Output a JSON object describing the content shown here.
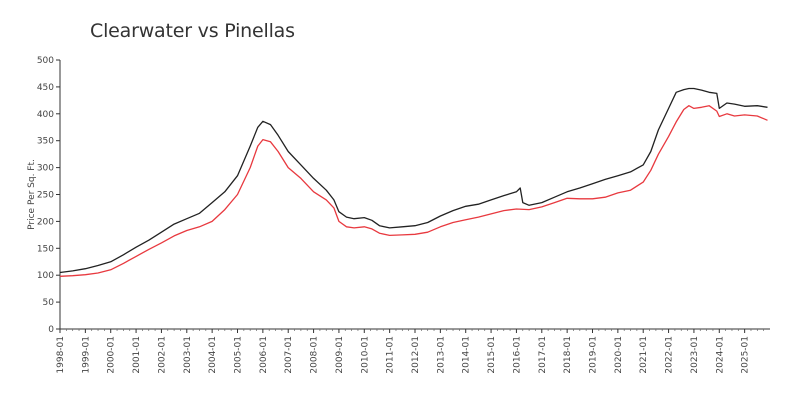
{
  "chart_data": {
    "type": "line",
    "title": "Clearwater vs Pinellas",
    "xlabel": "",
    "ylabel": "Price Per Sq. Ft.",
    "ylim": [
      0,
      500
    ],
    "yticks": [
      0,
      50,
      100,
      150,
      200,
      250,
      300,
      350,
      400,
      450,
      500
    ],
    "xlim": [
      1998.0,
      2026.0
    ],
    "xtick_labels": [
      "1998-01",
      "1999-01",
      "2000-01",
      "2001-01",
      "2002-01",
      "2003-01",
      "2004-01",
      "2005-01",
      "2006-01",
      "2007-01",
      "2008-01",
      "2009-01",
      "2010-01",
      "2011-01",
      "2012-01",
      "2013-01",
      "2014-01",
      "2015-01",
      "2016-01",
      "2017-01",
      "2018-01",
      "2019-01",
      "2020-01",
      "2021-01",
      "2022-01",
      "2023-01",
      "2024-01",
      "2025-01"
    ],
    "grid": false,
    "series": [
      {
        "name": "Clearwater",
        "color": "#222222",
        "x": [
          1998.0,
          1998.5,
          1999.0,
          1999.5,
          2000.0,
          2000.5,
          2001.0,
          2001.5,
          2002.0,
          2002.5,
          2003.0,
          2003.5,
          2004.0,
          2004.5,
          2005.0,
          2005.5,
          2005.8,
          2006.0,
          2006.3,
          2006.6,
          2007.0,
          2007.5,
          2008.0,
          2008.5,
          2008.8,
          2009.0,
          2009.3,
          2009.6,
          2010.0,
          2010.3,
          2010.6,
          2011.0,
          2011.5,
          2012.0,
          2012.5,
          2013.0,
          2013.5,
          2014.0,
          2014.5,
          2015.0,
          2015.5,
          2016.0,
          2016.15,
          2016.25,
          2016.5,
          2017.0,
          2017.5,
          2018.0,
          2018.5,
          2019.0,
          2019.5,
          2020.0,
          2020.5,
          2021.0,
          2021.3,
          2021.6,
          2022.0,
          2022.3,
          2022.6,
          2022.8,
          2023.0,
          2023.3,
          2023.6,
          2023.9,
          2024.0,
          2024.3,
          2024.6,
          2025.0,
          2025.5,
          2025.9
        ],
        "values": [
          105,
          108,
          112,
          118,
          125,
          138,
          152,
          165,
          180,
          195,
          205,
          215,
          235,
          255,
          285,
          340,
          375,
          386,
          380,
          360,
          330,
          305,
          280,
          258,
          240,
          218,
          208,
          205,
          207,
          202,
          192,
          188,
          190,
          192,
          198,
          210,
          220,
          228,
          232,
          240,
          248,
          255,
          262,
          235,
          230,
          235,
          245,
          255,
          262,
          270,
          278,
          285,
          292,
          305,
          330,
          370,
          410,
          440,
          445,
          447,
          447,
          444,
          440,
          438,
          410,
          420,
          418,
          414,
          415,
          412
        ]
      },
      {
        "name": "Pinellas",
        "color": "#e8393f",
        "x": [
          1998.0,
          1998.5,
          1999.0,
          1999.5,
          2000.0,
          2000.5,
          2001.0,
          2001.5,
          2002.0,
          2002.5,
          2003.0,
          2003.5,
          2004.0,
          2004.5,
          2005.0,
          2005.5,
          2005.8,
          2006.0,
          2006.3,
          2006.6,
          2007.0,
          2007.5,
          2008.0,
          2008.5,
          2008.8,
          2009.0,
          2009.3,
          2009.6,
          2010.0,
          2010.3,
          2010.6,
          2011.0,
          2011.5,
          2012.0,
          2012.5,
          2013.0,
          2013.5,
          2014.0,
          2014.5,
          2015.0,
          2015.5,
          2016.0,
          2016.5,
          2017.0,
          2017.5,
          2018.0,
          2018.5,
          2019.0,
          2019.5,
          2020.0,
          2020.5,
          2021.0,
          2021.3,
          2021.6,
          2022.0,
          2022.3,
          2022.6,
          2022.8,
          2023.0,
          2023.3,
          2023.6,
          2023.9,
          2024.0,
          2024.3,
          2024.6,
          2025.0,
          2025.5,
          2025.9
        ],
        "values": [
          98,
          99,
          101,
          104,
          110,
          122,
          135,
          148,
          160,
          173,
          183,
          190,
          200,
          222,
          250,
          300,
          340,
          352,
          348,
          330,
          300,
          280,
          255,
          240,
          225,
          200,
          190,
          188,
          190,
          186,
          178,
          174,
          175,
          176,
          180,
          190,
          198,
          203,
          208,
          214,
          220,
          223,
          222,
          227,
          235,
          243,
          242,
          242,
          245,
          253,
          258,
          273,
          295,
          325,
          358,
          385,
          408,
          415,
          410,
          412,
          415,
          405,
          395,
          400,
          396,
          398,
          396,
          388
        ]
      }
    ]
  }
}
